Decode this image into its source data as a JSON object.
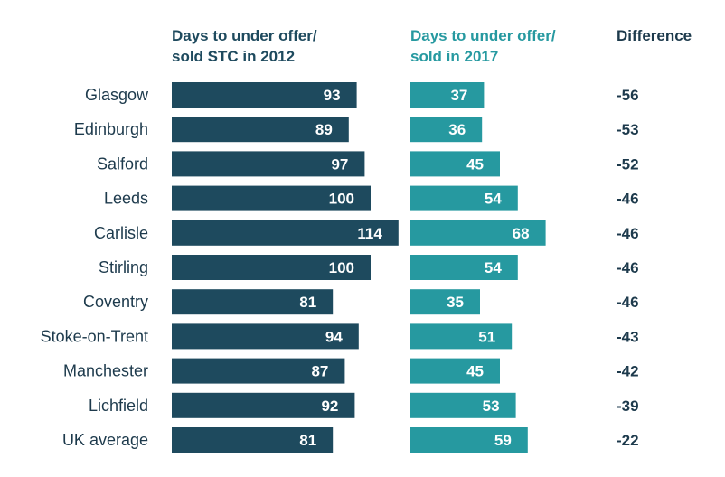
{
  "chart_data": {
    "type": "bar",
    "orientation": "horizontal",
    "categories": [
      "Glasgow",
      "Edinburgh",
      "Salford",
      "Leeds",
      "Carlisle",
      "Stirling",
      "Coventry",
      "Stoke-on-Trent",
      "Manchester",
      "Lichfield",
      "UK average"
    ],
    "series": [
      {
        "name": "Days to under offer/ sold STC in 2012",
        "values": [
          93,
          89,
          97,
          100,
          114,
          100,
          81,
          94,
          87,
          92,
          81
        ],
        "color": "#1e4a5e"
      },
      {
        "name": "Days to under offer/ sold in 2017",
        "values": [
          37,
          36,
          45,
          54,
          68,
          54,
          35,
          51,
          45,
          53,
          59
        ],
        "color": "#2699a0"
      }
    ],
    "difference": {
      "header": "Difference",
      "values": [
        "-56",
        "-53",
        "-52",
        "-46",
        "-46",
        "-46",
        "-46",
        "-43",
        "-42",
        "-39",
        "-22"
      ]
    },
    "headers": {
      "col2012": [
        "Days to under offer/",
        "sold STC in 2012"
      ],
      "col2017": [
        "Days to under offer/",
        "sold in 2017"
      ],
      "diff": "Difference"
    },
    "colors": {
      "dark": "#1e4a5e",
      "teal": "#2699a0",
      "diff_text": "#1d3a4c",
      "header_2012": "#1e4a5e",
      "header_2017": "#2699a0"
    },
    "grid": false,
    "legend": "none"
  }
}
